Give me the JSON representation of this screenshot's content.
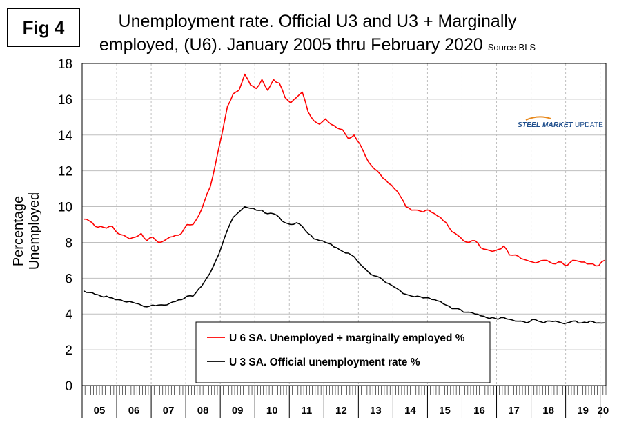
{
  "fig_label": "Fig 4",
  "title_line1": "Unemployment rate. Official U3 and U3 + Marginally",
  "title_line2": "employed, (U6). January 2005 thru February 2020",
  "source": "Source BLS",
  "logo": {
    "bold": "STEEL MARKET",
    "rest": " UPDATE"
  },
  "colors": {
    "u6": "#ff0000",
    "u3": "#000000",
    "grid": "#bfbfbf"
  },
  "chart_data": {
    "type": "line",
    "title": "Unemployment rate. Official U3 and U3 + Marginally employed, (U6). January 2005 thru February 2020",
    "xlabel": "",
    "ylabel": "Percentage Unemployed",
    "ylim": [
      0,
      18
    ],
    "yticks": [
      "0",
      "2",
      "4",
      "6",
      "8",
      "10",
      "12",
      "14",
      "16",
      "18"
    ],
    "years": [
      "05",
      "06",
      "07",
      "08",
      "09",
      "10",
      "11",
      "12",
      "13",
      "14",
      "15",
      "16",
      "17",
      "18",
      "19",
      "20"
    ],
    "months_count": 182,
    "legend": {
      "position": "bottom-center"
    },
    "series": [
      {
        "name": "U 6 SA. Unemployed + marginally employed %",
        "color": "#ff0000",
        "anchors": [
          [
            0,
            9.3
          ],
          [
            2,
            9.2
          ],
          [
            4,
            8.9
          ],
          [
            6,
            8.9
          ],
          [
            8,
            8.8
          ],
          [
            10,
            8.9
          ],
          [
            12,
            8.5
          ],
          [
            14,
            8.4
          ],
          [
            16,
            8.2
          ],
          [
            18,
            8.3
          ],
          [
            20,
            8.5
          ],
          [
            22,
            8.1
          ],
          [
            24,
            8.3
          ],
          [
            26,
            8.0
          ],
          [
            28,
            8.1
          ],
          [
            30,
            8.3
          ],
          [
            32,
            8.4
          ],
          [
            34,
            8.5
          ],
          [
            36,
            9.0
          ],
          [
            38,
            9.0
          ],
          [
            40,
            9.5
          ],
          [
            42,
            10.3
          ],
          [
            44,
            11.1
          ],
          [
            46,
            12.5
          ],
          [
            48,
            14.0
          ],
          [
            50,
            15.6
          ],
          [
            52,
            16.3
          ],
          [
            54,
            16.5
          ],
          [
            56,
            17.4
          ],
          [
            58,
            16.8
          ],
          [
            60,
            16.6
          ],
          [
            62,
            17.1
          ],
          [
            64,
            16.5
          ],
          [
            66,
            17.1
          ],
          [
            68,
            16.9
          ],
          [
            70,
            16.1
          ],
          [
            72,
            15.8
          ],
          [
            74,
            16.1
          ],
          [
            76,
            16.4
          ],
          [
            78,
            15.3
          ],
          [
            80,
            14.8
          ],
          [
            82,
            14.6
          ],
          [
            84,
            14.9
          ],
          [
            86,
            14.6
          ],
          [
            88,
            14.4
          ],
          [
            90,
            14.3
          ],
          [
            92,
            13.8
          ],
          [
            94,
            14.0
          ],
          [
            96,
            13.5
          ],
          [
            98,
            12.8
          ],
          [
            100,
            12.3
          ],
          [
            102,
            12.0
          ],
          [
            104,
            11.6
          ],
          [
            106,
            11.3
          ],
          [
            108,
            11.0
          ],
          [
            110,
            10.6
          ],
          [
            112,
            10.0
          ],
          [
            114,
            9.8
          ],
          [
            116,
            9.8
          ],
          [
            118,
            9.7
          ],
          [
            120,
            9.8
          ],
          [
            122,
            9.6
          ],
          [
            124,
            9.4
          ],
          [
            126,
            9.1
          ],
          [
            128,
            8.6
          ],
          [
            130,
            8.4
          ],
          [
            132,
            8.1
          ],
          [
            134,
            8.0
          ],
          [
            136,
            8.1
          ],
          [
            138,
            7.7
          ],
          [
            140,
            7.6
          ],
          [
            142,
            7.5
          ],
          [
            144,
            7.6
          ],
          [
            146,
            7.8
          ],
          [
            148,
            7.3
          ],
          [
            150,
            7.3
          ],
          [
            152,
            7.1
          ],
          [
            154,
            7.0
          ],
          [
            156,
            6.9
          ],
          [
            158,
            6.9
          ],
          [
            160,
            7.0
          ],
          [
            162,
            6.9
          ],
          [
            164,
            6.8
          ],
          [
            166,
            6.9
          ],
          [
            168,
            6.7
          ],
          [
            170,
            7.0
          ],
          [
            173,
            6.9
          ],
          [
            176,
            6.8
          ],
          [
            179,
            6.7
          ],
          [
            181,
            7.0
          ]
        ]
      },
      {
        "name": "U 3 SA. Official unemployment rate %",
        "color": "#000000",
        "anchors": [
          [
            0,
            5.3
          ],
          [
            2,
            5.2
          ],
          [
            4,
            5.1
          ],
          [
            6,
            5.0
          ],
          [
            8,
            5.0
          ],
          [
            10,
            4.9
          ],
          [
            12,
            4.8
          ],
          [
            14,
            4.7
          ],
          [
            16,
            4.7
          ],
          [
            18,
            4.6
          ],
          [
            20,
            4.5
          ],
          [
            22,
            4.4
          ],
          [
            24,
            4.5
          ],
          [
            26,
            4.5
          ],
          [
            28,
            4.5
          ],
          [
            30,
            4.6
          ],
          [
            32,
            4.7
          ],
          [
            34,
            4.8
          ],
          [
            36,
            5.0
          ],
          [
            38,
            5.0
          ],
          [
            40,
            5.4
          ],
          [
            42,
            5.8
          ],
          [
            44,
            6.3
          ],
          [
            46,
            7.0
          ],
          [
            48,
            7.8
          ],
          [
            50,
            8.7
          ],
          [
            52,
            9.4
          ],
          [
            54,
            9.7
          ],
          [
            56,
            10.0
          ],
          [
            58,
            9.9
          ],
          [
            60,
            9.8
          ],
          [
            62,
            9.8
          ],
          [
            64,
            9.6
          ],
          [
            66,
            9.6
          ],
          [
            68,
            9.4
          ],
          [
            70,
            9.1
          ],
          [
            72,
            9.0
          ],
          [
            74,
            9.1
          ],
          [
            76,
            8.9
          ],
          [
            78,
            8.5
          ],
          [
            80,
            8.2
          ],
          [
            82,
            8.1
          ],
          [
            84,
            8.0
          ],
          [
            86,
            7.9
          ],
          [
            88,
            7.7
          ],
          [
            90,
            7.5
          ],
          [
            92,
            7.4
          ],
          [
            94,
            7.2
          ],
          [
            96,
            6.8
          ],
          [
            98,
            6.5
          ],
          [
            100,
            6.2
          ],
          [
            102,
            6.1
          ],
          [
            104,
            5.9
          ],
          [
            106,
            5.7
          ],
          [
            108,
            5.5
          ],
          [
            110,
            5.3
          ],
          [
            112,
            5.1
          ],
          [
            114,
            5.0
          ],
          [
            116,
            5.0
          ],
          [
            118,
            4.9
          ],
          [
            120,
            4.9
          ],
          [
            122,
            4.8
          ],
          [
            124,
            4.7
          ],
          [
            126,
            4.5
          ],
          [
            128,
            4.3
          ],
          [
            130,
            4.3
          ],
          [
            132,
            4.1
          ],
          [
            134,
            4.1
          ],
          [
            136,
            4.0
          ],
          [
            138,
            3.9
          ],
          [
            140,
            3.8
          ],
          [
            142,
            3.8
          ],
          [
            144,
            3.7
          ],
          [
            146,
            3.8
          ],
          [
            148,
            3.7
          ],
          [
            150,
            3.6
          ],
          [
            152,
            3.6
          ],
          [
            154,
            3.5
          ],
          [
            156,
            3.7
          ],
          [
            158,
            3.6
          ],
          [
            160,
            3.5
          ],
          [
            162,
            3.6
          ],
          [
            164,
            3.6
          ],
          [
            166,
            3.5
          ],
          [
            168,
            3.5
          ],
          [
            170,
            3.6
          ],
          [
            173,
            3.5
          ],
          [
            176,
            3.6
          ],
          [
            179,
            3.5
          ],
          [
            181,
            3.5
          ]
        ]
      }
    ]
  }
}
